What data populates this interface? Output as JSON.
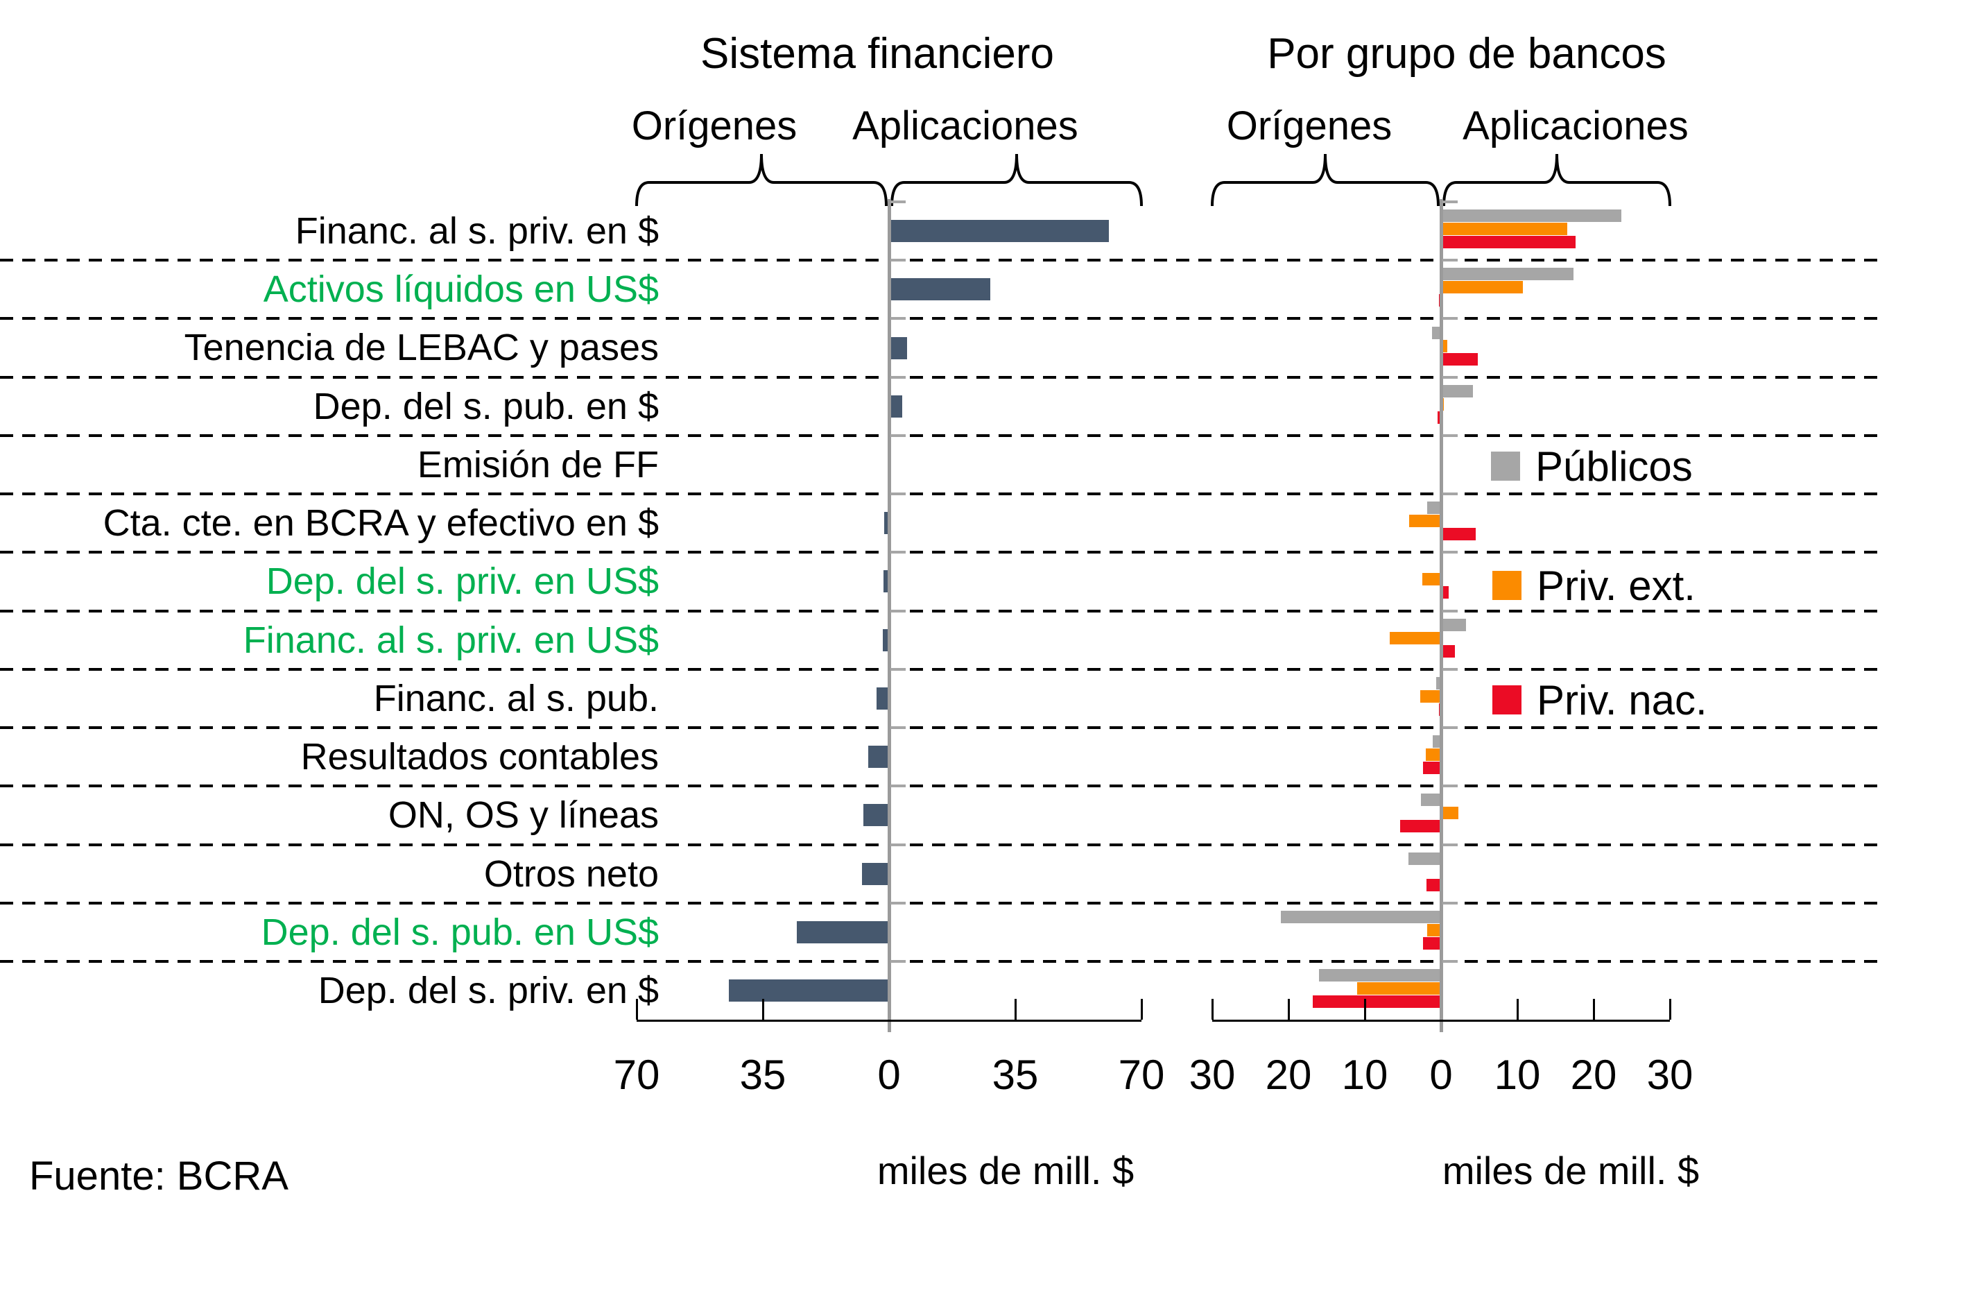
{
  "page": {
    "source_note": "Fuente: BCRA"
  },
  "colors": {
    "bar_dark": "#46586E",
    "publicos_gray": "#A6A6A6",
    "priv_ext_orange": "#FB8B00",
    "priv_nac_red": "#EB0C25",
    "highlight_label_green": "#00B050",
    "zero_line_gray": "#9B9B9B",
    "axis_black": "#000000"
  },
  "categories": [
    {
      "label": "Financ. al s. priv. en $",
      "highlight": false
    },
    {
      "label": "Activos líquidos en US$",
      "highlight": true
    },
    {
      "label": "Tenencia de LEBAC y pases",
      "highlight": false
    },
    {
      "label": "Dep. del s. pub. en $",
      "highlight": false
    },
    {
      "label": "Emisión de FF",
      "highlight": false
    },
    {
      "label": "Cta. cte. en BCRA y efectivo en $",
      "highlight": false
    },
    {
      "label": "Dep. del s. priv. en US$",
      "highlight": true
    },
    {
      "label": "Financ. al s. priv. en US$",
      "highlight": true
    },
    {
      "label": "Financ. al s. pub.",
      "highlight": false
    },
    {
      "label": "Resultados contables",
      "highlight": false
    },
    {
      "label": "ON, OS y líneas",
      "highlight": false
    },
    {
      "label": "Otros neto",
      "highlight": false
    },
    {
      "label": "Dep. del s. pub. en US$",
      "highlight": true
    },
    {
      "label": "Dep. del s. priv. en $",
      "highlight": false
    }
  ],
  "chart_data": [
    {
      "type": "bar",
      "orientation": "horizontal",
      "title": "Sistema financiero",
      "group_labels": [
        "Orígenes",
        "Aplicaciones"
      ],
      "xlabel": "miles de mill. $",
      "xlim": [
        -70,
        70
      ],
      "xtick_labels": [
        "70",
        "35",
        "0",
        "35",
        "70"
      ],
      "grid": "dashed-row-separators",
      "categories": [
        "Financ. al s. priv. en $",
        "Activos líquidos en US$",
        "Tenencia de LEBAC y pases",
        "Dep. del s. pub. en $",
        "Emisión de FF",
        "Cta. cte. en BCRA y efectivo en $",
        "Dep. del s. priv. en US$",
        "Financ. al s. priv. en US$",
        "Financ. al s. pub.",
        "Resultados contables",
        "ON, OS y líneas",
        "Otros neto",
        "Dep. del s. pub. en US$",
        "Dep. del s. priv. en $"
      ],
      "series": [
        {
          "name": "Sistema financiero",
          "color": "#46586E",
          "values": [
            61,
            28,
            5,
            3.7,
            0,
            -1.3,
            -1.5,
            -1.7,
            -3.4,
            -5.8,
            -7.1,
            -7.5,
            -25.5,
            -44.5
          ]
        }
      ],
      "legend": false
    },
    {
      "type": "bar",
      "orientation": "horizontal",
      "title": "Por grupo de bancos",
      "group_labels": [
        "Orígenes",
        "Aplicaciones"
      ],
      "xlabel": "miles de mill. $",
      "xlim": [
        -30,
        30
      ],
      "xtick_labels": [
        "30",
        "20",
        "10",
        "0",
        "10",
        "20",
        "30"
      ],
      "grid": "dashed-row-separators",
      "categories": [
        "Financ. al s. priv. en $",
        "Activos líquidos en US$",
        "Tenencia de LEBAC y pases",
        "Dep. del s. pub. en $",
        "Emisión de FF",
        "Cta. cte. en BCRA y efectivo en $",
        "Dep. del s. priv. en US$",
        "Financ. al s. priv. en US$",
        "Financ. al s. pub.",
        "Resultados contables",
        "ON, OS y líneas",
        "Otros neto",
        "Dep. del s. pub. en US$",
        "Dep. del s. priv. en $"
      ],
      "series": [
        {
          "name": "Públicos",
          "color": "#A6A6A6",
          "values": [
            23.6,
            17.4,
            -1.2,
            4.2,
            0,
            -1.8,
            0,
            3.3,
            -0.6,
            -1.1,
            -2.6,
            -4.3,
            -21,
            -16
          ]
        },
        {
          "name": "Priv. ext.",
          "color": "#FB8B00",
          "values": [
            16.5,
            10.7,
            0.8,
            0.4,
            0,
            -4.2,
            -2.5,
            -6.7,
            -2.7,
            -2.0,
            2.3,
            -0.2,
            -1.8,
            -11
          ]
        },
        {
          "name": "Priv. nac.",
          "color": "#EB0C25",
          "values": [
            17.6,
            -0.3,
            4.8,
            -0.5,
            0,
            4.5,
            1.0,
            1.8,
            -0.3,
            -2.4,
            -5.4,
            -1.9,
            -2.4,
            -16.8
          ]
        }
      ],
      "legend": true,
      "legend_position": "inside-right"
    }
  ]
}
